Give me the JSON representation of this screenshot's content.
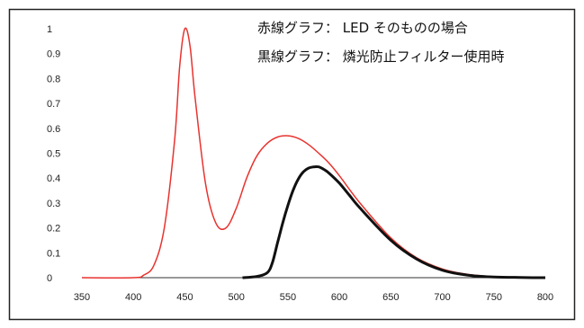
{
  "chart_data": {
    "type": "line",
    "legend": [
      "赤線グラフ： LED そのものの場合",
      "黒線グラフ： 燐光防止フィルター使用時"
    ],
    "x_ticks": [
      350,
      400,
      450,
      500,
      550,
      600,
      650,
      700,
      750,
      800
    ],
    "y_ticks": [
      0,
      0.1,
      0.2,
      0.3,
      0.4,
      0.5,
      0.6,
      0.7,
      0.8,
      0.9,
      1
    ],
    "xlim": [
      350,
      800
    ],
    "ylim": [
      0,
      1
    ],
    "grid": false,
    "legend_placement": "top-right",
    "series": [
      {
        "color": "#e8332f",
        "x": [
          350,
          400,
          410,
          420,
          430,
          440,
          445,
          450,
          455,
          460,
          470,
          480,
          490,
          500,
          510,
          520,
          530,
          540,
          550,
          560,
          570,
          580,
          590,
          600,
          620,
          650,
          675,
          700,
          725,
          750,
          775,
          800
        ],
        "y": [
          0,
          0,
          0.01,
          0.05,
          0.2,
          0.55,
          0.85,
          1.0,
          0.93,
          0.72,
          0.38,
          0.22,
          0.2,
          0.28,
          0.4,
          0.49,
          0.54,
          0.565,
          0.57,
          0.56,
          0.535,
          0.5,
          0.46,
          0.41,
          0.3,
          0.16,
          0.08,
          0.035,
          0.013,
          0.004,
          0.001,
          0
        ]
      },
      {
        "color": "#111111",
        "x": [
          506,
          520,
          530,
          535,
          540,
          545,
          550,
          555,
          560,
          565,
          570,
          575,
          580,
          585,
          590,
          600,
          610,
          620,
          650,
          675,
          700,
          725,
          750,
          775,
          800
        ],
        "y": [
          0,
          0.005,
          0.02,
          0.06,
          0.14,
          0.22,
          0.29,
          0.35,
          0.395,
          0.425,
          0.44,
          0.445,
          0.445,
          0.435,
          0.42,
          0.38,
          0.33,
          0.28,
          0.15,
          0.075,
          0.03,
          0.01,
          0.003,
          0.001,
          0
        ]
      }
    ]
  }
}
